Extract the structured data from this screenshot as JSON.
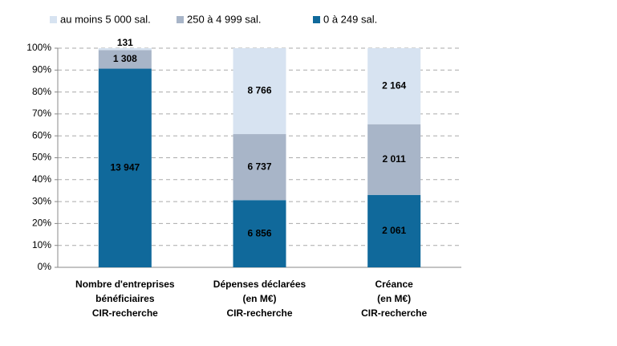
{
  "chart_data": {
    "type": "stacked_percent_bar",
    "categories": [
      [
        "Nombre d'entreprises",
        "bénéficiaires",
        "CIR-recherche"
      ],
      [
        "Dépenses déclarées",
        "(en M€)",
        "CIR-recherche"
      ],
      [
        "Créance",
        "(en M€)",
        "CIR-recherche"
      ]
    ],
    "series": [
      {
        "name": "0 à 249  sal.",
        "color": "#10699b",
        "values": [
          13947,
          6856,
          2061
        ],
        "value_labels": [
          "13 947",
          "6 856",
          "2 061"
        ]
      },
      {
        "name": "250 à 4 999  sal.",
        "color": "#a8b5c8",
        "values": [
          1308,
          6737,
          2011
        ],
        "value_labels": [
          "1 308",
          "6 737",
          "2 011"
        ]
      },
      {
        "name": "au moins 5 000 sal.",
        "color": "#d7e3f1",
        "values": [
          131,
          8766,
          2164
        ],
        "value_labels": [
          "131",
          "8 766",
          "2 164"
        ]
      }
    ],
    "ylim": [
      0,
      100
    ],
    "yticks": [
      {
        "value": 0,
        "label": "0%"
      },
      {
        "value": 10,
        "label": "10%"
      },
      {
        "value": 20,
        "label": "20%"
      },
      {
        "value": 30,
        "label": "30%"
      },
      {
        "value": 40,
        "label": "40%"
      },
      {
        "value": 50,
        "label": "50%"
      },
      {
        "value": 60,
        "label": "60%"
      },
      {
        "value": 70,
        "label": "70%"
      },
      {
        "value": 80,
        "label": "80%"
      },
      {
        "value": 90,
        "label": "90%"
      },
      {
        "value": 100,
        "label": "100%"
      }
    ],
    "grid": true
  }
}
